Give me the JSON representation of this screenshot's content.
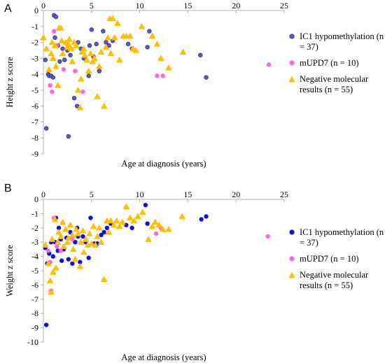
{
  "chart_data": [
    {
      "panel": "A",
      "type": "scatter",
      "xlabel": "Age at diagnosis (years)",
      "ylabel": "Height z score",
      "xlim": [
        0,
        25
      ],
      "ylim": [
        -9,
        0
      ],
      "x_ticks": [
        0,
        5,
        10,
        15,
        20,
        25
      ],
      "y_ticks": [
        0,
        -1,
        -2,
        -3,
        -4,
        -5,
        -6,
        -7,
        -8,
        -9
      ],
      "x_tick_labels": [
        "0",
        "5",
        "10",
        "15",
        "20",
        "25"
      ],
      "y_tick_labels": [
        "0",
        "-1",
        "-2",
        "-3",
        "-4",
        "-5",
        "-6",
        "-7",
        "-8",
        "-9"
      ],
      "grid": false,
      "legend_position": "right",
      "series": [
        {
          "name": "IC1 hypomethylation (n = 37)",
          "marker": "circle",
          "color": "#5a5ad0",
          "edge": "#2b2b80",
          "points": [
            [
              0.2,
              -3.1
            ],
            [
              0.5,
              -4.0
            ],
            [
              0.3,
              -7.4
            ],
            [
              0.6,
              -4.1
            ],
            [
              0.8,
              -4.1
            ],
            [
              1.0,
              -4.2
            ],
            [
              1.2,
              -1.7
            ],
            [
              1.1,
              -0.3
            ],
            [
              1.3,
              -0.4
            ],
            [
              1.5,
              -2.2
            ],
            [
              1.7,
              -3.2
            ],
            [
              2.0,
              -2.4
            ],
            [
              2.2,
              -3.1
            ],
            [
              2.5,
              -2.5
            ],
            [
              2.6,
              -7.9
            ],
            [
              2.8,
              -2.8
            ],
            [
              3.2,
              -5.5
            ],
            [
              3.5,
              -6.0
            ],
            [
              3.6,
              -2.0
            ],
            [
              3.9,
              -2.4
            ],
            [
              4.2,
              -3.0
            ],
            [
              4.7,
              -4.1
            ],
            [
              4.8,
              -2.2
            ],
            [
              5.0,
              -1.2
            ],
            [
              5.2,
              -2.9
            ],
            [
              5.5,
              -2.1
            ],
            [
              5.8,
              -3.8
            ],
            [
              6.2,
              -1.3
            ],
            [
              6.5,
              -2.0
            ],
            [
              6.8,
              -2.2
            ],
            [
              7.2,
              -1.9
            ],
            [
              8.8,
              -2.1
            ],
            [
              9.2,
              -2.4
            ],
            [
              10.8,
              -2.3
            ],
            [
              11.0,
              -1.3
            ],
            [
              16.3,
              -2.8
            ],
            [
              16.9,
              -4.2
            ]
          ]
        },
        {
          "name": "mUPD7 (n = 10)",
          "marker": "circle",
          "color": "#ff66dd",
          "edge": "#ff66dd",
          "points": [
            [
              0.7,
              -4.7
            ],
            [
              0.9,
              -5.1
            ],
            [
              1.1,
              -1.3
            ],
            [
              1.4,
              -2.2
            ],
            [
              2.1,
              -3.7
            ],
            [
              3.3,
              -3.8
            ],
            [
              4.1,
              -5.1
            ],
            [
              11.8,
              -4.1
            ],
            [
              12.4,
              -4.1
            ],
            [
              23.4,
              -3.4
            ]
          ]
        },
        {
          "name": "Negative molecular results (n = 55)",
          "marker": "triangle",
          "color": "#ffbf00",
          "edge": "#ffbf00",
          "points": [
            [
              0.0,
              -1.7
            ],
            [
              0.3,
              -2.4
            ],
            [
              0.6,
              -3.7
            ],
            [
              0.8,
              -2.7
            ],
            [
              0.9,
              -2.0
            ],
            [
              1.0,
              -3.0
            ],
            [
              1.2,
              -2.2
            ],
            [
              1.3,
              -3.5
            ],
            [
              1.5,
              -4.7
            ],
            [
              1.6,
              -1.1
            ],
            [
              1.8,
              -1.1
            ],
            [
              1.9,
              -1.9
            ],
            [
              2.0,
              -2.7
            ],
            [
              2.3,
              -2.0
            ],
            [
              2.5,
              -2.3
            ],
            [
              2.6,
              -2.1
            ],
            [
              2.7,
              -1.8
            ],
            [
              2.9,
              -2.4
            ],
            [
              3.0,
              -3.2
            ],
            [
              3.2,
              -2.0
            ],
            [
              3.4,
              -2.2
            ],
            [
              3.6,
              -5.0
            ],
            [
              3.8,
              -6.1
            ],
            [
              3.9,
              -4.3
            ],
            [
              4.0,
              -2.6
            ],
            [
              4.2,
              -2.4
            ],
            [
              4.3,
              -2.8
            ],
            [
              4.5,
              -3.1
            ],
            [
              4.7,
              -3.8
            ],
            [
              4.9,
              -2.7
            ],
            [
              5.1,
              -3.2
            ],
            [
              5.3,
              -3.0
            ],
            [
              5.6,
              -5.4
            ],
            [
              5.8,
              -3.5
            ],
            [
              6.0,
              -2.6
            ],
            [
              6.3,
              -6.0
            ],
            [
              6.5,
              -2.3
            ],
            [
              6.7,
              -1.7
            ],
            [
              6.9,
              -0.5
            ],
            [
              7.0,
              -2.7
            ],
            [
              7.2,
              -0.5
            ],
            [
              7.4,
              -1.7
            ],
            [
              7.7,
              -0.8
            ],
            [
              7.9,
              -3.1
            ],
            [
              8.3,
              -1.6
            ],
            [
              8.6,
              -1.6
            ],
            [
              9.0,
              -1.6
            ],
            [
              9.3,
              -2.4
            ],
            [
              9.6,
              -2.5
            ],
            [
              10.2,
              -1.0
            ],
            [
              11.3,
              -1.6
            ],
            [
              11.8,
              -2.1
            ],
            [
              12.2,
              -3.0
            ],
            [
              13.0,
              -3.6
            ],
            [
              14.5,
              -2.6
            ]
          ]
        }
      ]
    },
    {
      "panel": "B",
      "type": "scatter",
      "xlabel": "Age at diagnosis (years)",
      "ylabel": "Weight z score",
      "xlim": [
        0,
        25
      ],
      "ylim": [
        -10,
        0
      ],
      "x_ticks": [
        0,
        5,
        10,
        15,
        20,
        25
      ],
      "y_ticks": [
        0,
        -1,
        -2,
        -3,
        -4,
        -5,
        -6,
        -7,
        -8,
        -9,
        -10
      ],
      "x_tick_labels": [
        "0",
        "5",
        "10",
        "15",
        "20",
        "25"
      ],
      "y_tick_labels": [
        "0",
        "-1",
        "-2",
        "-3",
        "-4",
        "-5",
        "-6",
        "-7",
        "-8",
        "-9",
        "-10"
      ],
      "grid": false,
      "legend_position": "right",
      "series": [
        {
          "name": "IC1 hypomethylation (n = 37)",
          "marker": "circle",
          "color": "#1010e0",
          "edge": "#1010e0",
          "points": [
            [
              0.2,
              -3.4
            ],
            [
              0.3,
              -8.8
            ],
            [
              0.4,
              -4.5
            ],
            [
              0.6,
              -3.8
            ],
            [
              0.8,
              -3.0
            ],
            [
              1.0,
              -4.0
            ],
            [
              1.2,
              -3.0
            ],
            [
              1.3,
              -1.3
            ],
            [
              1.5,
              -3.6
            ],
            [
              1.6,
              -2.0
            ],
            [
              1.8,
              -2.8
            ],
            [
              1.9,
              -4.3
            ],
            [
              2.1,
              -3.5
            ],
            [
              2.4,
              -2.7
            ],
            [
              2.6,
              -4.2
            ],
            [
              2.8,
              -2.3
            ],
            [
              3.0,
              -4.5
            ],
            [
              3.3,
              -3.0
            ],
            [
              3.6,
              -2.6
            ],
            [
              3.8,
              -4.4
            ],
            [
              4.1,
              -2.6
            ],
            [
              4.4,
              -3.0
            ],
            [
              4.7,
              -4.1
            ],
            [
              4.9,
              -1.3
            ],
            [
              5.3,
              -3.1
            ],
            [
              5.6,
              -3.1
            ],
            [
              6.0,
              -2.5
            ],
            [
              6.3,
              -2.3
            ],
            [
              6.6,
              -2.0
            ],
            [
              7.0,
              -1.7
            ],
            [
              8.6,
              -1.8
            ],
            [
              9.2,
              -2.0
            ],
            [
              10.8,
              -1.7
            ],
            [
              10.6,
              -0.4
            ],
            [
              16.4,
              -1.4
            ],
            [
              16.9,
              -1.2
            ],
            [
              3.5,
              -2.0
            ]
          ]
        },
        {
          "name": "mUPD7 (n = 10)",
          "marker": "circle",
          "color": "#ff66dd",
          "edge": "#ff66dd",
          "points": [
            [
              0.5,
              -3.6
            ],
            [
              0.7,
              -4.4
            ],
            [
              0.8,
              -6.4
            ],
            [
              1.1,
              -1.3
            ],
            [
              1.4,
              -3.3
            ],
            [
              1.8,
              -3.6
            ],
            [
              3.0,
              -2.8
            ],
            [
              11.7,
              -2.4
            ],
            [
              12.2,
              -2.0
            ],
            [
              23.3,
              -2.6
            ]
          ]
        },
        {
          "name": "Negative molecular results (n = 55)",
          "marker": "triangle",
          "color": "#ffbf00",
          "edge": "#ffbf00",
          "points": [
            [
              0.2,
              -3.2
            ],
            [
              0.5,
              -4.5
            ],
            [
              0.7,
              -5.7
            ],
            [
              0.8,
              -6.5
            ],
            [
              0.9,
              -2.8
            ],
            [
              1.0,
              -5.1
            ],
            [
              1.2,
              -1.4
            ],
            [
              1.3,
              -4.8
            ],
            [
              1.5,
              -3.0
            ],
            [
              1.6,
              -2.3
            ],
            [
              1.8,
              -2.6
            ],
            [
              2.0,
              -1.6
            ],
            [
              2.1,
              -3.3
            ],
            [
              2.3,
              -2.1
            ],
            [
              2.5,
              -3.0
            ],
            [
              2.6,
              -2.7
            ],
            [
              2.8,
              -1.8
            ],
            [
              3.0,
              -2.5
            ],
            [
              3.1,
              -3.5
            ],
            [
              3.3,
              -4.2
            ],
            [
              3.4,
              -2.1
            ],
            [
              3.6,
              -2.4
            ],
            [
              3.8,
              -4.7
            ],
            [
              3.9,
              -3.0
            ],
            [
              4.1,
              -2.2
            ],
            [
              4.2,
              -3.7
            ],
            [
              4.4,
              -2.8
            ],
            [
              4.6,
              -3.2
            ],
            [
              4.8,
              -2.4
            ],
            [
              5.0,
              -3.1
            ],
            [
              5.2,
              -1.9
            ],
            [
              5.4,
              -3.2
            ],
            [
              5.6,
              -2.6
            ],
            [
              5.8,
              -2.0
            ],
            [
              6.0,
              -3.0
            ],
            [
              6.3,
              -5.6
            ],
            [
              6.6,
              -1.5
            ],
            [
              6.8,
              -2.3
            ],
            [
              7.0,
              -1.5
            ],
            [
              7.3,
              -1.8
            ],
            [
              7.6,
              -1.5
            ],
            [
              7.9,
              -1.9
            ],
            [
              8.2,
              -1.6
            ],
            [
              8.6,
              -0.5
            ],
            [
              9.0,
              -1.3
            ],
            [
              9.4,
              -1.5
            ],
            [
              9.8,
              -1.2
            ],
            [
              10.3,
              -0.9
            ],
            [
              10.9,
              -2.8
            ],
            [
              11.3,
              -1.9
            ],
            [
              11.6,
              -1.6
            ],
            [
              12.0,
              -1.8
            ],
            [
              12.4,
              -2.1
            ],
            [
              13.0,
              -2.1
            ],
            [
              14.4,
              -1.2
            ]
          ]
        }
      ]
    }
  ]
}
